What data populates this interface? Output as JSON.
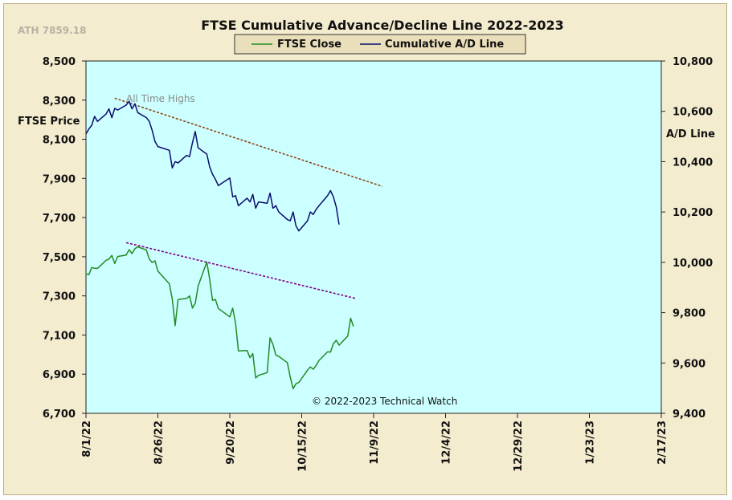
{
  "chart_data": {
    "type": "line",
    "title": "FTSE Cumulative  Advance/Decline  Line 2022-2023",
    "ath_label": "ATH 7859.18",
    "annotation": "All Time Highs",
    "copyright": "© 2022-2023  Technical Watch",
    "left_axis": {
      "label": "FTSE Price",
      "min": 6700,
      "max": 8500,
      "ticks": [
        "6,700",
        "6,900",
        "7,100",
        "7,300",
        "7,500",
        "7,700",
        "7,900",
        "8,100",
        "8,300",
        "8,500"
      ]
    },
    "right_axis": {
      "label": "A/D Line",
      "min": 9400,
      "max": 10800,
      "ticks": [
        "9,400",
        "9,600",
        "9,800",
        "10,000",
        "10,200",
        "10,400",
        "10,600",
        "10,800"
      ]
    },
    "x_axis": {
      "start": "2022-08-01",
      "end": "2023-02-17",
      "ticks": [
        "8/1/22",
        "8/26/22",
        "9/20/22",
        "10/15/22",
        "11/9/22",
        "12/4/22",
        "12/29/22",
        "1/23/23",
        "2/17/23"
      ]
    },
    "legend": {
      "position": "top-center",
      "entries": [
        {
          "name": "FTSE Close",
          "color": "#228b22"
        },
        {
          "name": "Cumulative A/D Line",
          "color": "#0c0c6e"
        }
      ]
    },
    "plot_background": "#ccffff",
    "series": [
      {
        "name": "FTSE Close",
        "axis": "left",
        "color": "#228b22",
        "x": [
          "2022-08-01",
          "2022-08-02",
          "2022-08-03",
          "2022-08-04",
          "2022-08-05",
          "2022-08-08",
          "2022-08-09",
          "2022-08-10",
          "2022-08-11",
          "2022-08-12",
          "2022-08-15",
          "2022-08-16",
          "2022-08-17",
          "2022-08-18",
          "2022-08-19",
          "2022-08-22",
          "2022-08-23",
          "2022-08-24",
          "2022-08-25",
          "2022-08-26",
          "2022-08-30",
          "2022-08-31",
          "2022-09-01",
          "2022-09-02",
          "2022-09-05",
          "2022-09-06",
          "2022-09-07",
          "2022-09-08",
          "2022-09-09",
          "2022-09-12",
          "2022-09-13",
          "2022-09-14",
          "2022-09-15",
          "2022-09-16",
          "2022-09-20",
          "2022-09-21",
          "2022-09-22",
          "2022-09-23",
          "2022-09-26",
          "2022-09-27",
          "2022-09-28",
          "2022-09-29",
          "2022-09-30",
          "2022-10-03",
          "2022-10-04",
          "2022-10-05",
          "2022-10-06",
          "2022-10-07",
          "2022-10-10",
          "2022-10-11",
          "2022-10-12",
          "2022-10-13",
          "2022-10-14",
          "2022-10-17",
          "2022-10-18",
          "2022-10-19",
          "2022-10-20",
          "2022-10-21",
          "2022-10-24",
          "2022-10-25",
          "2022-10-26",
          "2022-10-27",
          "2022-10-28",
          "2022-10-31",
          "2022-11-01",
          "2022-11-02"
        ],
        "values": [
          7413,
          7409,
          7445,
          7441,
          7440,
          7482,
          7488,
          7507,
          7465,
          7501,
          7509,
          7536,
          7516,
          7541,
          7551,
          7534,
          7488,
          7471,
          7479,
          7427,
          7361,
          7284,
          7148,
          7281,
          7287,
          7300,
          7238,
          7262,
          7351,
          7473,
          7386,
          7277,
          7282,
          7236,
          7193,
          7237,
          7159,
          7019,
          7021,
          6984,
          7005,
          6881,
          6894,
          6908,
          7086,
          7052,
          6997,
          6991,
          6959,
          6886,
          6826,
          6851,
          6858,
          6920,
          6937,
          6925,
          6944,
          6970,
          7014,
          7013,
          7056,
          7073,
          7048,
          7095,
          7186,
          7144
        ]
      },
      {
        "name": "Cumulative A/D Line",
        "axis": "right",
        "color": "#0c0c6e",
        "x": [
          "2022-08-01",
          "2022-08-02",
          "2022-08-03",
          "2022-08-04",
          "2022-08-05",
          "2022-08-08",
          "2022-08-09",
          "2022-08-10",
          "2022-08-11",
          "2022-08-12",
          "2022-08-15",
          "2022-08-16",
          "2022-08-17",
          "2022-08-18",
          "2022-08-19",
          "2022-08-22",
          "2022-08-23",
          "2022-08-24",
          "2022-08-25",
          "2022-08-26",
          "2022-08-30",
          "2022-08-31",
          "2022-09-01",
          "2022-09-02",
          "2022-09-05",
          "2022-09-06",
          "2022-09-07",
          "2022-09-08",
          "2022-09-09",
          "2022-09-12",
          "2022-09-13",
          "2022-09-14",
          "2022-09-15",
          "2022-09-16",
          "2022-09-20",
          "2022-09-21",
          "2022-09-22",
          "2022-09-23",
          "2022-09-26",
          "2022-09-27",
          "2022-09-28",
          "2022-09-29",
          "2022-09-30",
          "2022-10-03",
          "2022-10-04",
          "2022-10-05",
          "2022-10-06",
          "2022-10-07",
          "2022-10-10",
          "2022-10-11",
          "2022-10-12",
          "2022-10-13",
          "2022-10-14",
          "2022-10-17",
          "2022-10-18",
          "2022-10-19",
          "2022-10-20",
          "2022-10-21",
          "2022-10-24",
          "2022-10-25",
          "2022-10-26",
          "2022-10-27",
          "2022-10-28"
        ],
        "values": [
          10510,
          10530,
          10545,
          10580,
          10560,
          10590,
          10610,
          10575,
          10612,
          10605,
          10625,
          10640,
          10610,
          10630,
          10595,
          10575,
          10560,
          10525,
          10480,
          10460,
          10445,
          10375,
          10400,
          10395,
          10425,
          10420,
          10475,
          10520,
          10455,
          10430,
          10380,
          10350,
          10330,
          10305,
          10335,
          10260,
          10265,
          10225,
          10255,
          10240,
          10270,
          10215,
          10240,
          10235,
          10275,
          10215,
          10225,
          10200,
          10170,
          10165,
          10200,
          10145,
          10125,
          10165,
          10200,
          10190,
          10210,
          10225,
          10265,
          10285,
          10260,
          10220,
          10150
        ]
      }
    ],
    "trendlines": [
      {
        "name": "A/D Line trendline",
        "axis": "right",
        "color": "#8b4513",
        "x": [
          "2022-08-11",
          "2022-11-12"
        ],
        "values": [
          10652,
          10302
        ]
      },
      {
        "name": "FTSE trendline",
        "axis": "left",
        "color": "#800080",
        "x": [
          "2022-08-15",
          "2022-11-03"
        ],
        "values": [
          7572,
          7286
        ]
      }
    ]
  }
}
